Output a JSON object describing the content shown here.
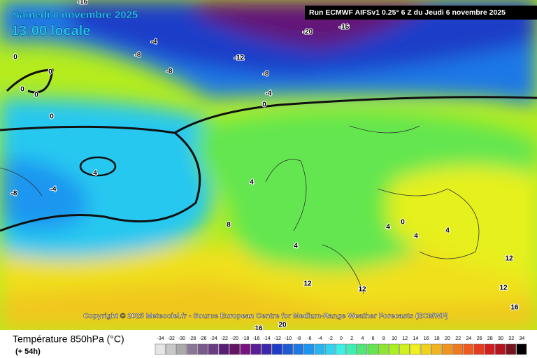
{
  "header": {
    "date": "Samedi 8 novembre 2025",
    "time": "13:00 locale",
    "run": "Run ECMWF AIFSv1 0.25° 6 Z du Jeudi 6 novembre 2025"
  },
  "copyright": "Copyright © 2025 Meteociel.fr - Source European Centre for Medium-Range Weather Forecasts (ECMWF)",
  "footer": {
    "title": "Température 850hPa (°C)",
    "lead": "(+ 54h)"
  },
  "contour_labels": [
    -16,
    -20,
    -16,
    -4,
    -8,
    -12,
    -8,
    -8,
    -4,
    0,
    0,
    0,
    0,
    0,
    4,
    0,
    -8,
    -4,
    4,
    8,
    4,
    4,
    0,
    4,
    4,
    12,
    12,
    12,
    12,
    16,
    20,
    16
  ],
  "scale": {
    "ticks": [
      -34,
      -32,
      -30,
      -28,
      -26,
      -24,
      -22,
      -20,
      -18,
      -16,
      -14,
      -12,
      -10,
      -8,
      -6,
      -4,
      -2,
      0,
      2,
      4,
      6,
      8,
      10,
      12,
      14,
      16,
      18,
      20,
      22,
      24,
      26,
      28,
      30,
      32,
      34
    ],
    "colors": [
      "#e6e6e6",
      "#c8c8c8",
      "#aaaaaa",
      "#8c7896",
      "#7a5a8c",
      "#6a3c82",
      "#5a1e78",
      "#641464",
      "#78147f",
      "#5a1e96",
      "#3c28aa",
      "#1e3cc8",
      "#1e5ad2",
      "#1e78e6",
      "#1e96f0",
      "#28b4f0",
      "#32d2f0",
      "#3cf0e6",
      "#3cf0b4",
      "#50e678",
      "#64e650",
      "#8ce632",
      "#aaf01e",
      "#d2f01e",
      "#f0f01e",
      "#f0d21e",
      "#f0b41e",
      "#f0961e",
      "#f0781e",
      "#f05a1e",
      "#e63c1e",
      "#d21e1e",
      "#b4141e",
      "#78141e",
      "#000000"
    ]
  }
}
